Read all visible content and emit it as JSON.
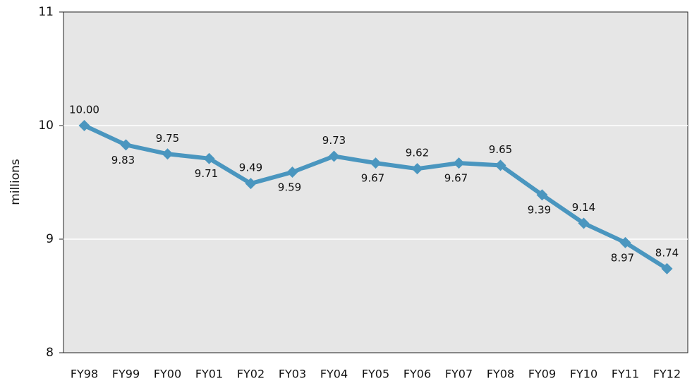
{
  "chart_data": {
    "type": "line",
    "y_label": "millions",
    "categories": [
      "FY98",
      "FY99",
      "FY00",
      "FY01",
      "FY02",
      "FY03",
      "FY04",
      "FY05",
      "FY06",
      "FY07",
      "FY08",
      "FY09",
      "FY10",
      "FY11",
      "FY12"
    ],
    "values": [
      10,
      9.83,
      9.75,
      9.71,
      9.49,
      9.59,
      9.73,
      9.67,
      9.62,
      9.67,
      9.65,
      9.39,
      9.14,
      8.97,
      8.74
    ],
    "value_labels": [
      "10.00",
      "9.83",
      "9.75",
      "9.71",
      "9.49",
      "9.59",
      "9.73",
      "9.67",
      "9.62",
      "9.67",
      "9.65",
      "9.39",
      "9.14",
      "8.97",
      "8.74"
    ],
    "color": "#4a96bf",
    "ylim": [
      8,
      11
    ],
    "yticks": [
      8,
      9,
      10,
      11
    ],
    "grid": true
  }
}
